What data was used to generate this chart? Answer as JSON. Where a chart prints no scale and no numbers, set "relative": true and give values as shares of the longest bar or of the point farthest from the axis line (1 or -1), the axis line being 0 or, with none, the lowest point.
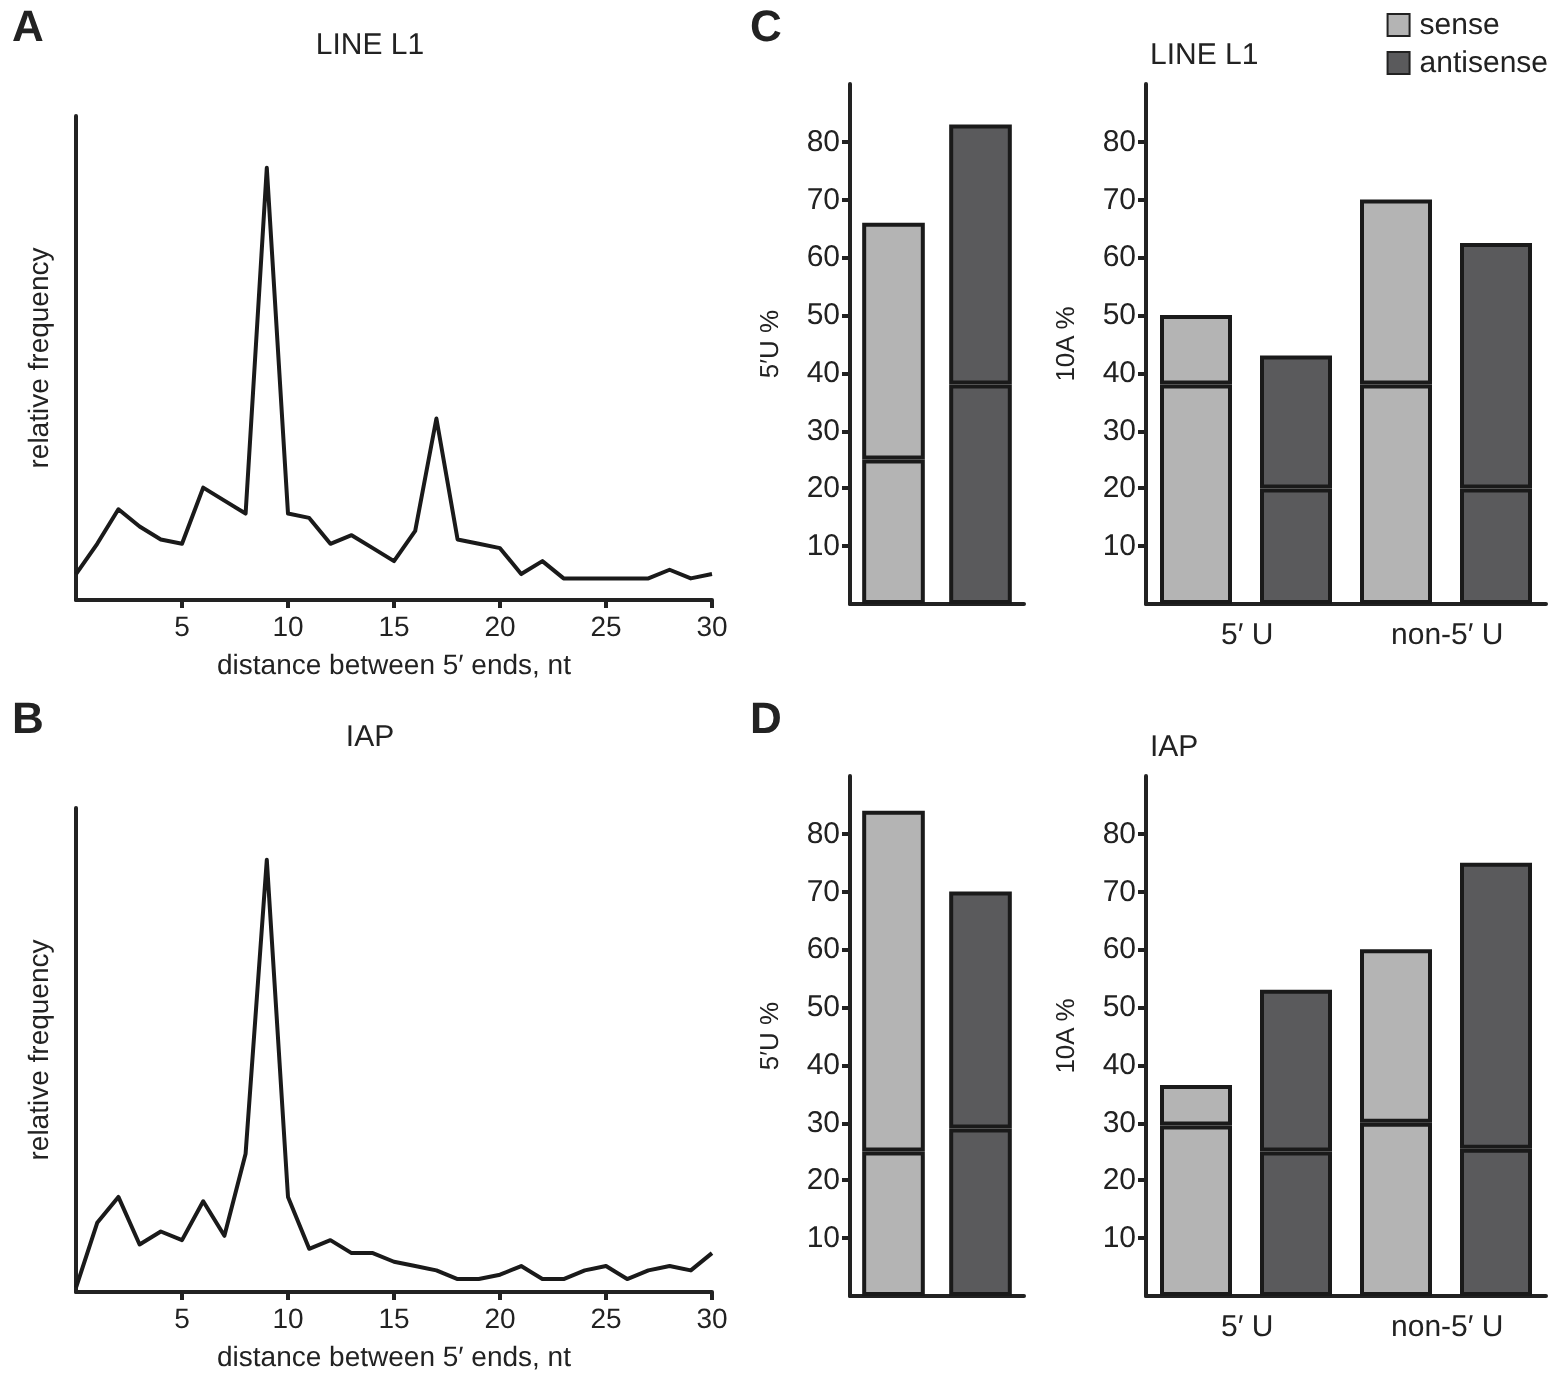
{
  "chart_data": [
    {
      "type": "line",
      "title": "LINE L1",
      "xlabel": "distance between 5′ ends, nt",
      "ylabel": "relative frequency",
      "relative": true,
      "annotations": [
        "A"
      ],
      "xlim": [
        0,
        30
      ],
      "xticks": [
        5,
        10,
        15,
        20,
        25,
        30
      ],
      "marker": "none",
      "x": [
        0,
        1,
        2,
        3,
        4,
        5,
        6,
        7,
        8,
        9,
        10,
        11,
        12,
        13,
        14,
        15,
        16,
        17,
        18,
        19,
        20,
        21,
        22,
        23,
        24,
        25,
        26,
        27,
        28,
        29,
        30
      ],
      "series": [
        {
          "color": "#1a1a1a",
          "values": [
            0.06,
            0.13,
            0.21,
            0.17,
            0.14,
            0.13,
            0.26,
            0.23,
            0.2,
            1,
            0.2,
            0.19,
            0.13,
            0.15,
            0.12,
            0.09,
            0.16,
            0.42,
            0.14,
            0.13,
            0.12,
            0.06,
            0.09,
            0.05,
            0.05,
            0.05,
            0.05,
            0.05,
            0.07,
            0.05,
            0.06
          ]
        }
      ]
    },
    {
      "type": "bar",
      "stacked": true,
      "ylabel": "5′U %",
      "annotations": [
        "C"
      ],
      "categories": [
        null,
        null
      ],
      "ylim": [
        0,
        90
      ],
      "yticks": [
        10,
        20,
        30,
        40,
        50,
        60,
        70,
        80
      ],
      "series": [
        {
          "color": "#b4b4b4",
          "values": [
            25,
            null
          ]
        },
        {
          "color": "#5a5a5c",
          "values": [
            null,
            38
          ]
        },
        {
          "color": "#b4b4b4",
          "values": [
            41,
            null
          ]
        },
        {
          "color": "#5a5a5c",
          "values": [
            null,
            45
          ]
        }
      ]
    },
    {
      "type": "bar",
      "stacked": true,
      "title": "LINE L1",
      "ylabel": "10A %",
      "categories": [
        "5′ U",
        null,
        "non-5′ U",
        null
      ],
      "ylim": [
        0,
        90
      ],
      "yticks": [
        10,
        20,
        30,
        40,
        50,
        60,
        70,
        80
      ],
      "legend": "top right",
      "series": [
        {
          "name": "sense",
          "color": "#b4b4b4",
          "values": [
            38,
            null,
            38,
            null
          ]
        },
        {
          "name": "antisense",
          "color": "#5a5a5c",
          "values": [
            null,
            20,
            null,
            20
          ]
        },
        {
          "color": "#b4b4b4",
          "values": [
            12,
            null,
            32,
            null
          ]
        },
        {
          "color": "#5a5a5c",
          "values": [
            null,
            23,
            null,
            42.5
          ]
        }
      ]
    },
    {
      "type": "line",
      "title": "IAP",
      "xlabel": "distance between 5′ ends, nt",
      "ylabel": "relative frequency",
      "relative": true,
      "annotations": [
        "B"
      ],
      "xlim": [
        0,
        30
      ],
      "xticks": [
        5,
        10,
        15,
        20,
        25,
        30
      ],
      "marker": "none",
      "x": [
        0,
        1,
        2,
        3,
        4,
        5,
        6,
        7,
        8,
        9,
        10,
        11,
        12,
        13,
        14,
        15,
        16,
        17,
        18,
        19,
        20,
        21,
        22,
        23,
        24,
        25,
        26,
        27,
        28,
        29,
        30
      ],
      "series": [
        {
          "color": "#1a1a1a",
          "values": [
            0.01,
            0.16,
            0.22,
            0.11,
            0.14,
            0.12,
            0.21,
            0.13,
            0.32,
            1,
            0.22,
            0.1,
            0.12,
            0.09,
            0.09,
            0.07,
            0.06,
            0.05,
            0.03,
            0.03,
            0.04,
            0.06,
            0.03,
            0.03,
            0.05,
            0.06,
            0.03,
            0.05,
            0.06,
            0.05,
            0.09
          ]
        }
      ]
    },
    {
      "type": "bar",
      "stacked": true,
      "ylabel": "5′U %",
      "annotations": [
        "D"
      ],
      "categories": [
        null,
        null
      ],
      "ylim": [
        0,
        90
      ],
      "yticks": [
        10,
        20,
        30,
        40,
        50,
        60,
        70,
        80
      ],
      "series": [
        {
          "color": "#b4b4b4",
          "values": [
            25,
            null
          ]
        },
        {
          "color": "#5a5a5c",
          "values": [
            null,
            29
          ]
        },
        {
          "color": "#b4b4b4",
          "values": [
            59,
            null
          ]
        },
        {
          "color": "#5a5a5c",
          "values": [
            null,
            41
          ]
        }
      ]
    },
    {
      "type": "bar",
      "stacked": true,
      "title": "IAP",
      "ylabel": "10A %",
      "categories": [
        "5′ U",
        null,
        "non-5′ U",
        null
      ],
      "ylim": [
        0,
        90
      ],
      "yticks": [
        10,
        20,
        30,
        40,
        50,
        60,
        70,
        80
      ],
      "series": [
        {
          "color": "#b4b4b4",
          "values": [
            29.5,
            null,
            30,
            null
          ]
        },
        {
          "color": "#5a5a5c",
          "values": [
            null,
            25,
            null,
            25.5
          ]
        },
        {
          "color": "#b4b4b4",
          "values": [
            7,
            null,
            30,
            null
          ]
        },
        {
          "color": "#5a5a5c",
          "values": [
            null,
            28,
            null,
            49.5
          ]
        }
      ]
    }
  ]
}
